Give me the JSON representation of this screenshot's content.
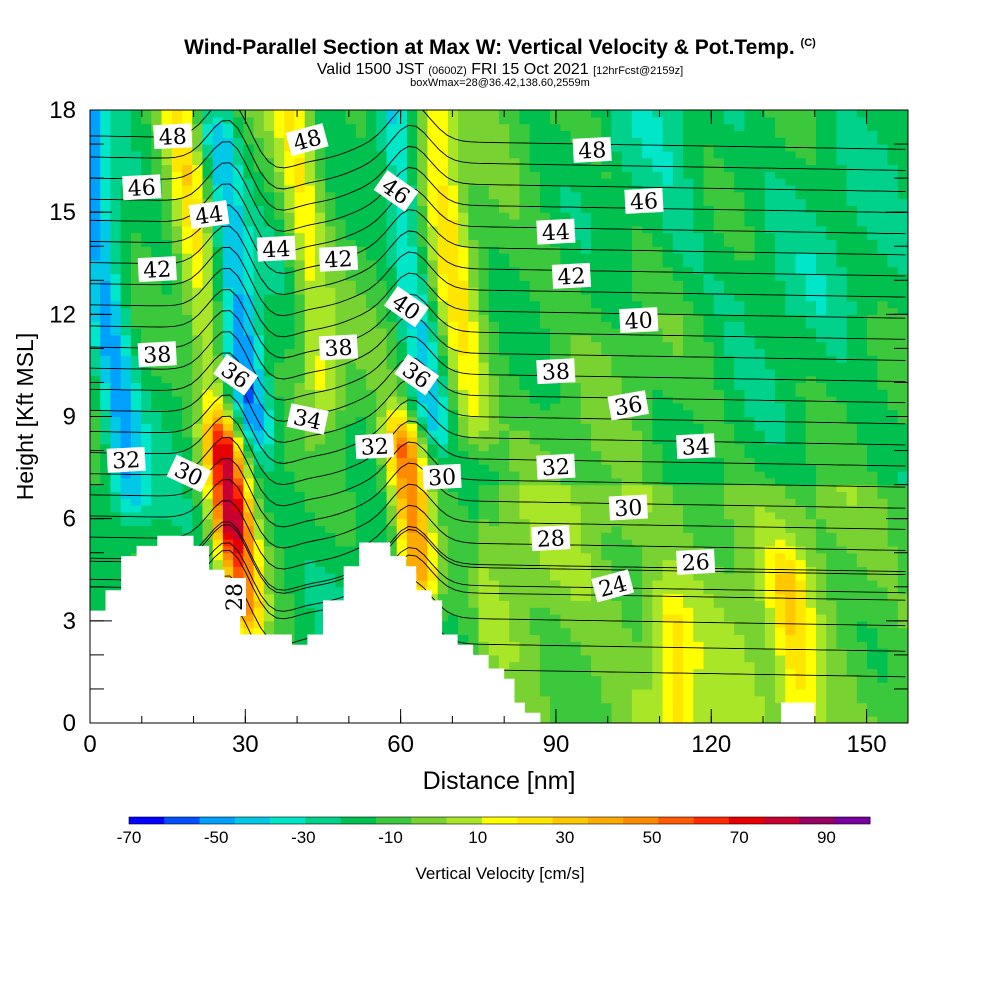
{
  "title": {
    "main": "Wind-Parallel Section at Max W: Vertical Velocity & Pot.Temp.",
    "copyright": "(C)",
    "valid_prefix": "Valid 1500 JST",
    "valid_utc": "(0600Z)",
    "valid_date": "FRI 15 Oct 2021",
    "forecast": "[12hrFcst@2159z]",
    "box_info": "boxWmax=28@36.42,138.60,2559m"
  },
  "colors": {
    "terrain": "#ffffff",
    "contour": "#000000",
    "colorbar": [
      "#0000ff",
      "#0050ff",
      "#00a0ff",
      "#00c8e6",
      "#00e6c8",
      "#00d28c",
      "#00c050",
      "#3cc83c",
      "#78d232",
      "#aae628",
      "#ffff00",
      "#ffe600",
      "#ffc800",
      "#ffaa00",
      "#ff8c00",
      "#ff5a00",
      "#ff2800",
      "#e60000",
      "#c80032",
      "#960064",
      "#7800a0"
    ]
  },
  "chart_data": {
    "type": "heatmap",
    "title": "Wind-Parallel Section at Max W: Vertical Velocity & Pot.Temp.",
    "xlabel": "Distance [nm]",
    "ylabel": "Height [Kft MSL]",
    "xlim": [
      0,
      158
    ],
    "ylim": [
      0,
      18
    ],
    "xticks": [
      0,
      30,
      60,
      90,
      120,
      150
    ],
    "yticks": [
      0,
      3,
      6,
      9,
      12,
      15,
      18
    ],
    "colorbar": {
      "label": "Vertical Velocity [cm/s]",
      "bounds": [
        -70,
        100
      ],
      "step": 8.5,
      "tick_labels": [
        -70,
        -50,
        -30,
        -10,
        10,
        30,
        50,
        70,
        90
      ]
    },
    "vertical_velocity_features": [
      {
        "x": 3,
        "ymin": 7,
        "ymax": 18,
        "w": -45
      },
      {
        "x": 22,
        "ymin": 6,
        "ymax": 18,
        "w": 25
      },
      {
        "x": 28,
        "ymin": 9,
        "ymax": 17,
        "w": -45
      },
      {
        "x": 28,
        "ymin": 3.5,
        "ymax": 8,
        "w": 55
      },
      {
        "x": 42,
        "ymin": 10,
        "ymax": 18,
        "w": 20
      },
      {
        "x": 62,
        "ymin": 9,
        "ymax": 18,
        "w": -40
      },
      {
        "x": 62,
        "ymin": 4.5,
        "ymax": 8,
        "w": 60
      },
      {
        "x": 70,
        "ymin": 9,
        "ymax": 18,
        "w": 20
      },
      {
        "x": 113,
        "ymin": 14,
        "ymax": 18,
        "w": -15
      },
      {
        "x": 136,
        "ymin": 0.5,
        "ymax": 4,
        "w": 15
      },
      {
        "x": 113,
        "ymin": 0.5,
        "ymax": 3,
        "w": 15
      }
    ],
    "theta_labels": [
      {
        "value": "48",
        "x": 16,
        "y": 17.2
      },
      {
        "value": "48",
        "x": 42,
        "y": 17.1
      },
      {
        "value": "48",
        "x": 97,
        "y": 16.8
      },
      {
        "value": "46",
        "x": 10,
        "y": 15.7
      },
      {
        "value": "46",
        "x": 59,
        "y": 15.6
      },
      {
        "value": "46",
        "x": 107,
        "y": 15.3
      },
      {
        "value": "44",
        "x": 23,
        "y": 14.9
      },
      {
        "value": "44",
        "x": 36,
        "y": 13.9
      },
      {
        "value": "44",
        "x": 90,
        "y": 14.4
      },
      {
        "value": "42",
        "x": 13,
        "y": 13.3
      },
      {
        "value": "42",
        "x": 48,
        "y": 13.6
      },
      {
        "value": "42",
        "x": 93,
        "y": 13.1
      },
      {
        "value": "40",
        "x": 61,
        "y": 12.2
      },
      {
        "value": "40",
        "x": 106,
        "y": 11.8
      },
      {
        "value": "38",
        "x": 13,
        "y": 10.8
      },
      {
        "value": "38",
        "x": 48,
        "y": 11.0
      },
      {
        "value": "38",
        "x": 90,
        "y": 10.3
      },
      {
        "value": "36",
        "x": 28,
        "y": 10.2
      },
      {
        "value": "36",
        "x": 63,
        "y": 10.2
      },
      {
        "value": "36",
        "x": 104,
        "y": 9.3
      },
      {
        "value": "34",
        "x": 42,
        "y": 8.9
      },
      {
        "value": "34",
        "x": 117,
        "y": 8.1
      },
      {
        "value": "32",
        "x": 7,
        "y": 7.7
      },
      {
        "value": "32",
        "x": 55,
        "y": 8.1
      },
      {
        "value": "32",
        "x": 90,
        "y": 7.5
      },
      {
        "value": "30",
        "x": 19,
        "y": 7.3
      },
      {
        "value": "30",
        "x": 68,
        "y": 7.2
      },
      {
        "value": "30",
        "x": 104,
        "y": 6.3
      },
      {
        "value": "28",
        "x": 28,
        "y": 3.7
      },
      {
        "value": "28",
        "x": 89,
        "y": 5.4
      },
      {
        "value": "26",
        "x": 117,
        "y": 4.7
      },
      {
        "value": "24",
        "x": 101,
        "y": 4.0
      }
    ],
    "terrain": [
      [
        0,
        3.3
      ],
      [
        3,
        3.3
      ],
      [
        3,
        3.9
      ],
      [
        6,
        3.9
      ],
      [
        6,
        4.9
      ],
      [
        9,
        4.9
      ],
      [
        9,
        5.2
      ],
      [
        13,
        5.2
      ],
      [
        13,
        5.5
      ],
      [
        20,
        5.5
      ],
      [
        20,
        5.2
      ],
      [
        23,
        5.2
      ],
      [
        23,
        4.5
      ],
      [
        26,
        4.5
      ],
      [
        26,
        3.3
      ],
      [
        29,
        3.3
      ],
      [
        29,
        2.6
      ],
      [
        39,
        2.6
      ],
      [
        39,
        2.3
      ],
      [
        42,
        2.3
      ],
      [
        42,
        2.6
      ],
      [
        45,
        2.6
      ],
      [
        45,
        3.6
      ],
      [
        49,
        3.6
      ],
      [
        49,
        4.6
      ],
      [
        52,
        4.6
      ],
      [
        52,
        5.3
      ],
      [
        58,
        5.3
      ],
      [
        58,
        4.9
      ],
      [
        61,
        4.9
      ],
      [
        61,
        4.6
      ],
      [
        63,
        4.6
      ],
      [
        63,
        3.9
      ],
      [
        66,
        3.9
      ],
      [
        66,
        3.6
      ],
      [
        68,
        3.6
      ],
      [
        68,
        2.6
      ],
      [
        71,
        2.6
      ],
      [
        71,
        2.3
      ],
      [
        74,
        2.3
      ],
      [
        74,
        2.0
      ],
      [
        77,
        2.0
      ],
      [
        77,
        1.6
      ],
      [
        80,
        1.6
      ],
      [
        80,
        1.3
      ],
      [
        82,
        1.3
      ],
      [
        82,
        0.6
      ],
      [
        84,
        0.6
      ],
      [
        84,
        0.3
      ],
      [
        87,
        0.3
      ],
      [
        87,
        0
      ],
      [
        0,
        0
      ]
    ]
  }
}
